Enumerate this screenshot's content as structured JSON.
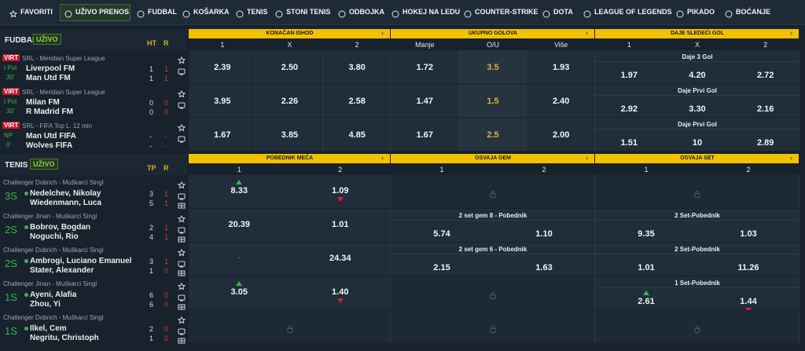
{
  "nav": [
    "FAVORITI",
    "UŽIVO PRENOS",
    "FUDBAL",
    "KOŠARKA",
    "TENIS",
    "STONI TENIS",
    "ODBOJKA",
    "HOKEJ NA LEDU",
    "COUNTER-STRIKE",
    "DOTA",
    "LEAGUE OF LEGENDS",
    "PIKADO",
    "BOĆANJE"
  ],
  "football": {
    "title": "FUDBAL",
    "badge": "UŽIVO",
    "cols": [
      "HT",
      "R"
    ],
    "groups": [
      {
        "name": "KONAČAN ISHOD",
        "labels": [
          "1",
          "X",
          "2"
        ]
      },
      {
        "name": "UKUPNO GOLOVA",
        "labels": [
          "Manje",
          "O/U",
          "Više"
        ]
      },
      {
        "name": "DAJE SLEDEĆI GOL",
        "labels": [
          "1",
          "X",
          "2"
        ]
      }
    ],
    "matches": [
      {
        "tag": "VIRT",
        "league": "SRL - Meridian Super League",
        "status": "I Pol",
        "time": "30'",
        "teams": [
          {
            "name": "Liverpool FM",
            "scores": [
              1,
              1
            ]
          },
          {
            "name": "Man Utd FM",
            "scores": [
              1,
              1
            ]
          }
        ],
        "result": [
          "2.39",
          "2.50",
          "3.80"
        ],
        "total": [
          "1.72",
          "3.5",
          "1.93"
        ],
        "next": {
          "label": "Daje 3 Gol",
          "odds": [
            "1.97",
            "4.20",
            "2.72"
          ]
        }
      },
      {
        "tag": "VIRT",
        "league": "SRL - Meridian Super League",
        "status": "I Pol",
        "time": "30'",
        "teams": [
          {
            "name": "Milan FM",
            "scores": [
              0,
              0
            ]
          },
          {
            "name": "R Madrid FM",
            "scores": [
              0,
              0
            ]
          }
        ],
        "result": [
          "3.95",
          "2.26",
          "2.58"
        ],
        "total": [
          "1.47",
          "1.5",
          "2.40"
        ],
        "next": {
          "label": "Daje Prvi Gol",
          "odds": [
            "2.92",
            "3.30",
            "2.16"
          ]
        }
      },
      {
        "tag": "VIRT",
        "league": "SRL - FIFA Top L. 12 min",
        "status": "NP",
        "time": "0'",
        "teams": [
          {
            "name": "Man Utd FIFA",
            "scores": [
              "-",
              "-"
            ]
          },
          {
            "name": "Wolves FIFA",
            "scores": [
              "-",
              "-"
            ]
          }
        ],
        "result": [
          "1.67",
          "3.85",
          "4.85"
        ],
        "total": [
          "1.67",
          "2.5",
          "2.00"
        ],
        "next": {
          "label": "Daje Prvi Gol",
          "odds": [
            "1.51",
            "10",
            "2.89"
          ]
        }
      }
    ]
  },
  "tennis": {
    "title": "TENIS",
    "badge": "UŽIVO",
    "cols": [
      "TP",
      "R"
    ],
    "groups": [
      {
        "name": "POBEDNIK MEČA",
        "labels": [
          "1",
          "2"
        ]
      },
      {
        "name": "OSVAJA GEM",
        "labels": [
          "1",
          "2"
        ]
      },
      {
        "name": "OSVAJA SET",
        "labels": [
          "1",
          "2"
        ]
      }
    ],
    "matches": [
      {
        "league": "Challenger Dobrich - Muškarci Singl",
        "set": "3S",
        "teams": [
          {
            "name": "Nedelchev, Nikolay",
            "scores": [
              3,
              1
            ],
            "serving": true
          },
          {
            "name": "Wiedenmann, Luca",
            "scores": [
              5,
              1
            ],
            "serving": false
          }
        ],
        "winner": {
          "odds": [
            "8.33",
            "1.09"
          ],
          "moves": [
            "up",
            "down"
          ]
        },
        "gem": null,
        "set_market": null
      },
      {
        "league": "Challenger Jinan - Muškarci Singl",
        "set": "2S",
        "teams": [
          {
            "name": "Bobrov, Bogdan",
            "scores": [
              2,
              1
            ],
            "serving": true
          },
          {
            "name": "Noguchi, Rio",
            "scores": [
              4,
              1
            ],
            "serving": false
          }
        ],
        "winner": {
          "odds": [
            "20.39",
            "1.01"
          ],
          "moves": [
            null,
            null
          ]
        },
        "gem": {
          "label": "2 set gem 8 - Pobednik",
          "odds": [
            "5.74",
            "1.10"
          ],
          "moves": [
            null,
            null
          ]
        },
        "set_market": {
          "label": "2 Set-Pobednik",
          "odds": [
            "9.35",
            "1.03"
          ],
          "moves": [
            null,
            null
          ]
        }
      },
      {
        "league": "Challenger Dobrich - Muškarci Singl",
        "set": "2S",
        "teams": [
          {
            "name": "Ambrogi, Luciano Emanuel",
            "scores": [
              3,
              1
            ],
            "serving": true
          },
          {
            "name": "Stater, Alexander",
            "scores": [
              1,
              0
            ],
            "serving": false
          }
        ],
        "winner": {
          "odds": [
            "-",
            "24.34"
          ],
          "moves": [
            null,
            null
          ]
        },
        "gem": {
          "label": "2 set gem 6 - Pobednik",
          "odds": [
            "2.15",
            "1.63"
          ],
          "moves": [
            null,
            null
          ]
        },
        "set_market": {
          "label": "2 Set-Pobednik",
          "odds": [
            "1.01",
            "11.26"
          ],
          "moves": [
            null,
            null
          ]
        }
      },
      {
        "league": "Challenger Jinan - Muškarci Singl",
        "set": "1S",
        "teams": [
          {
            "name": "Ayeni, Alafia",
            "scores": [
              6,
              0
            ],
            "serving": true
          },
          {
            "name": "Zhou, Yi",
            "scores": [
              6,
              0
            ],
            "serving": false
          }
        ],
        "winner": {
          "odds": [
            "3.05",
            "1.40"
          ],
          "moves": [
            "up",
            "down"
          ]
        },
        "gem": null,
        "set_market": {
          "label": "1 Set-Pobednik",
          "odds": [
            "2.61",
            "1.44"
          ],
          "moves": [
            "up",
            "down"
          ]
        }
      },
      {
        "league": "Challenger Dobrich - Muškarci Singl",
        "set": "1S",
        "teams": [
          {
            "name": "Ilkel, Cem",
            "scores": [
              2,
              0
            ],
            "serving": true
          },
          {
            "name": "Negritu, Christoph",
            "scores": [
              1,
              0
            ],
            "serving": false
          }
        ],
        "winner": null,
        "gem": null,
        "set_market": null
      }
    ]
  }
}
